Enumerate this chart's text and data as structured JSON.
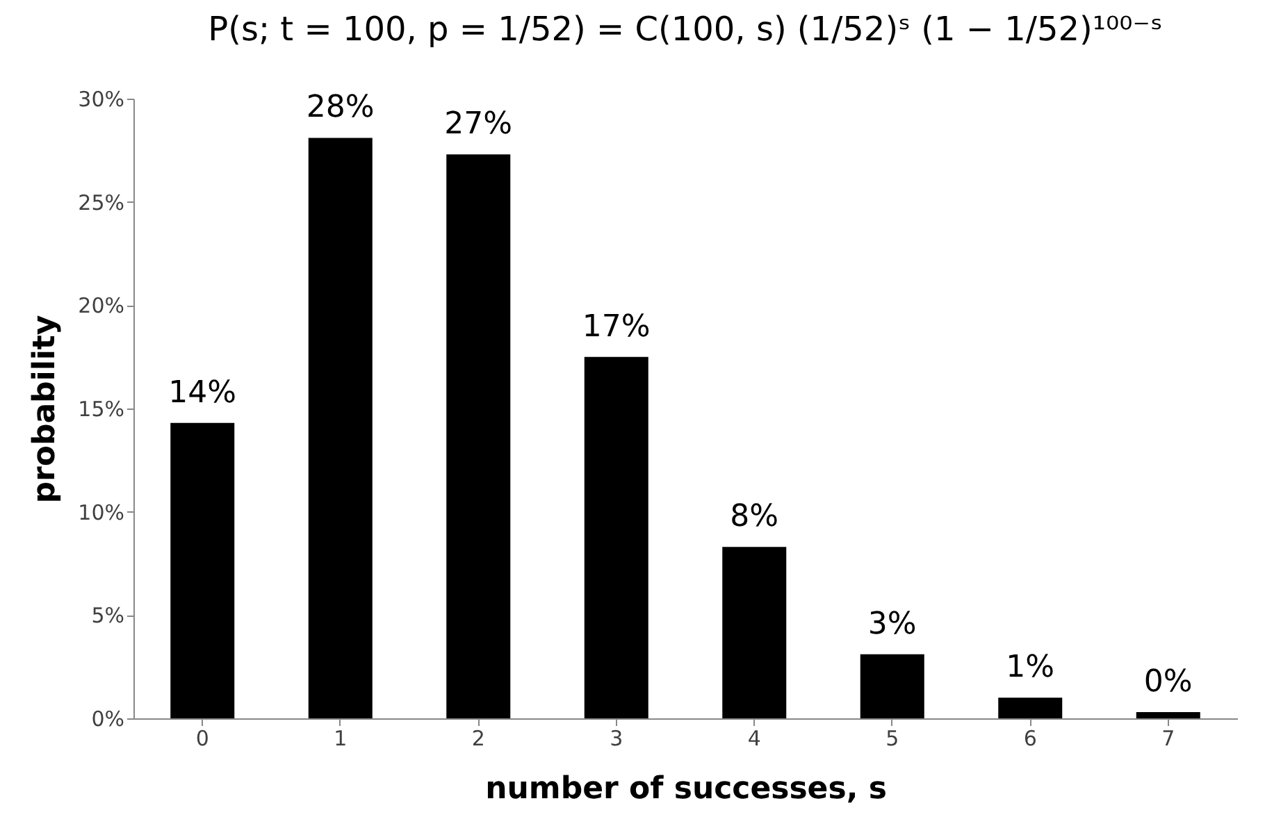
{
  "chart_data": {
    "type": "bar",
    "title": "P(s; t = 100, p = 1/52) = C(100, s) (1/52)ˢ (1 − 1/52)¹⁰⁰⁻ˢ",
    "xlabel": "number of successes, s",
    "ylabel": "probability",
    "categories": [
      "0",
      "1",
      "2",
      "3",
      "4",
      "5",
      "6",
      "7"
    ],
    "values": [
      14.3,
      28.1,
      27.3,
      17.5,
      8.3,
      3.1,
      1.0,
      0.3
    ],
    "value_labels": [
      "14%",
      "28%",
      "27%",
      "17%",
      "8%",
      "3%",
      "1%",
      "0%"
    ],
    "color": "#000000",
    "ylim": [
      0,
      30
    ],
    "yticks": [
      {
        "value": 0,
        "label": "0%"
      },
      {
        "value": 5,
        "label": "5%"
      },
      {
        "value": 10,
        "label": "10%"
      },
      {
        "value": 15,
        "label": "15%"
      },
      {
        "value": 20,
        "label": "20%"
      },
      {
        "value": 25,
        "label": "25%"
      },
      {
        "value": 30,
        "label": "30%"
      }
    ],
    "grid": false
  }
}
